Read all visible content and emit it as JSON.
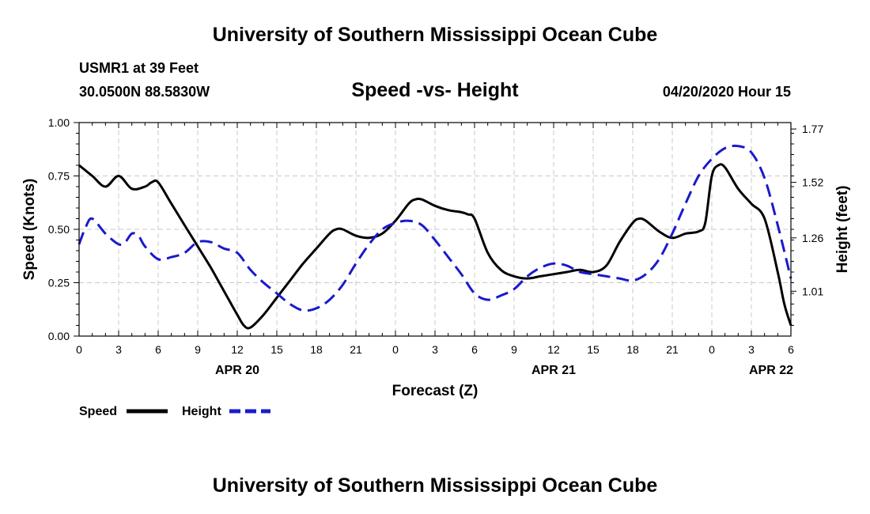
{
  "header": {
    "title": "University of Southern Mississippi Ocean Cube",
    "station": "USMR1 at 39 Feet",
    "coordinates": "30.0500N 88.5830W",
    "subtitle": "Speed -vs- Height",
    "datetime": "04/20/2020 Hour 15"
  },
  "footer": {
    "title": "University of Southern Mississippi Ocean Cube"
  },
  "chart_data": {
    "type": "line",
    "title": "Speed -vs- Height",
    "xlabel": "Forecast (Z)",
    "ylabel": "Speed (Knots)",
    "y2label": "Height (feet)",
    "xlim": [
      0,
      54
    ],
    "ylim": [
      0,
      1.0
    ],
    "y2lim": [
      0.8,
      1.8
    ],
    "x_ticks": [
      0,
      3,
      6,
      9,
      12,
      15,
      18,
      21,
      24,
      27,
      30,
      33,
      36,
      39,
      42,
      45,
      48,
      51,
      54
    ],
    "x_tick_labels": [
      "0",
      "3",
      "6",
      "9",
      "12",
      "15",
      "18",
      "21",
      "0",
      "3",
      "6",
      "9",
      "12",
      "15",
      "18",
      "21",
      "0",
      "3",
      "6"
    ],
    "date_labels": [
      {
        "x": 12,
        "label": "APR 20"
      },
      {
        "x": 36,
        "label": "APR 21"
      },
      {
        "x": 52.5,
        "label": "APR 22"
      }
    ],
    "y_ticks": [
      0.0,
      0.25,
      0.5,
      0.75,
      1.0
    ],
    "y_tick_labels": [
      "0.00",
      "0.25",
      "0.50",
      "0.75",
      "1.00"
    ],
    "y2_ticks": [
      1.01,
      1.26,
      1.52,
      1.77
    ],
    "y2_tick_labels": [
      "1.01",
      "1.26",
      "1.52",
      "1.77"
    ],
    "grid": true,
    "legend": [
      {
        "name": "Speed",
        "color": "#000000",
        "style": "solid"
      },
      {
        "name": "Height",
        "color": "#1a1acc",
        "style": "dashed"
      }
    ],
    "series": [
      {
        "name": "Speed",
        "axis": "left",
        "color": "#000000",
        "style": "solid",
        "points": [
          [
            0,
            0.8
          ],
          [
            1,
            0.75
          ],
          [
            2,
            0.7
          ],
          [
            3,
            0.75
          ],
          [
            4,
            0.69
          ],
          [
            5,
            0.7
          ],
          [
            5.5,
            0.72
          ],
          [
            6,
            0.72
          ],
          [
            7,
            0.62
          ],
          [
            8,
            0.52
          ],
          [
            9,
            0.42
          ],
          [
            10,
            0.32
          ],
          [
            11,
            0.21
          ],
          [
            12,
            0.1
          ],
          [
            12.5,
            0.05
          ],
          [
            13,
            0.04
          ],
          [
            14,
            0.1
          ],
          [
            15,
            0.18
          ],
          [
            16,
            0.26
          ],
          [
            17,
            0.34
          ],
          [
            18,
            0.41
          ],
          [
            19,
            0.48
          ],
          [
            19.5,
            0.5
          ],
          [
            20,
            0.5
          ],
          [
            21,
            0.47
          ],
          [
            22,
            0.46
          ],
          [
            23,
            0.48
          ],
          [
            24,
            0.54
          ],
          [
            25,
            0.62
          ],
          [
            25.5,
            0.64
          ],
          [
            26,
            0.64
          ],
          [
            27,
            0.61
          ],
          [
            28,
            0.59
          ],
          [
            29,
            0.58
          ],
          [
            29.5,
            0.57
          ],
          [
            30,
            0.55
          ],
          [
            31,
            0.39
          ],
          [
            32,
            0.31
          ],
          [
            33,
            0.28
          ],
          [
            34,
            0.27
          ],
          [
            35,
            0.28
          ],
          [
            36,
            0.29
          ],
          [
            37,
            0.3
          ],
          [
            38,
            0.31
          ],
          [
            39,
            0.3
          ],
          [
            40,
            0.33
          ],
          [
            41,
            0.44
          ],
          [
            42,
            0.53
          ],
          [
            42.5,
            0.55
          ],
          [
            43,
            0.54
          ],
          [
            44,
            0.49
          ],
          [
            45,
            0.46
          ],
          [
            46,
            0.48
          ],
          [
            47,
            0.49
          ],
          [
            47.5,
            0.53
          ],
          [
            48,
            0.75
          ],
          [
            48.5,
            0.8
          ],
          [
            49,
            0.79
          ],
          [
            50,
            0.69
          ],
          [
            51,
            0.62
          ],
          [
            52,
            0.55
          ],
          [
            53,
            0.3
          ],
          [
            53.5,
            0.15
          ],
          [
            54,
            0.05
          ]
        ]
      },
      {
        "name": "Height",
        "axis": "right",
        "color": "#1a1acc",
        "style": "dashed",
        "points": [
          [
            0,
            1.23
          ],
          [
            0.5,
            1.31
          ],
          [
            1,
            1.35
          ],
          [
            2,
            1.28
          ],
          [
            3,
            1.23
          ],
          [
            3.5,
            1.24
          ],
          [
            4,
            1.28
          ],
          [
            4.5,
            1.27
          ],
          [
            5,
            1.22
          ],
          [
            6,
            1.16
          ],
          [
            7,
            1.17
          ],
          [
            8,
            1.19
          ],
          [
            9,
            1.24
          ],
          [
            10,
            1.24
          ],
          [
            11,
            1.21
          ],
          [
            12,
            1.19
          ],
          [
            13,
            1.11
          ],
          [
            14,
            1.05
          ],
          [
            15,
            1.0
          ],
          [
            16,
            0.95
          ],
          [
            17,
            0.92
          ],
          [
            18,
            0.93
          ],
          [
            19,
            0.97
          ],
          [
            20,
            1.04
          ],
          [
            21,
            1.14
          ],
          [
            22,
            1.23
          ],
          [
            23,
            1.3
          ],
          [
            24,
            1.33
          ],
          [
            25,
            1.34
          ],
          [
            26,
            1.32
          ],
          [
            27,
            1.25
          ],
          [
            28,
            1.17
          ],
          [
            29,
            1.09
          ],
          [
            30,
            1.0
          ],
          [
            31,
            0.97
          ],
          [
            32,
            0.99
          ],
          [
            33,
            1.02
          ],
          [
            34,
            1.08
          ],
          [
            35,
            1.12
          ],
          [
            36,
            1.14
          ],
          [
            37,
            1.13
          ],
          [
            38,
            1.1
          ],
          [
            39,
            1.09
          ],
          [
            40,
            1.08
          ],
          [
            41,
            1.07
          ],
          [
            42,
            1.06
          ],
          [
            43,
            1.09
          ],
          [
            44,
            1.16
          ],
          [
            45,
            1.28
          ],
          [
            46,
            1.42
          ],
          [
            47,
            1.55
          ],
          [
            48,
            1.63
          ],
          [
            49,
            1.68
          ],
          [
            50,
            1.69
          ],
          [
            51,
            1.66
          ],
          [
            52,
            1.54
          ],
          [
            53,
            1.32
          ],
          [
            54,
            1.07
          ]
        ]
      }
    ]
  }
}
